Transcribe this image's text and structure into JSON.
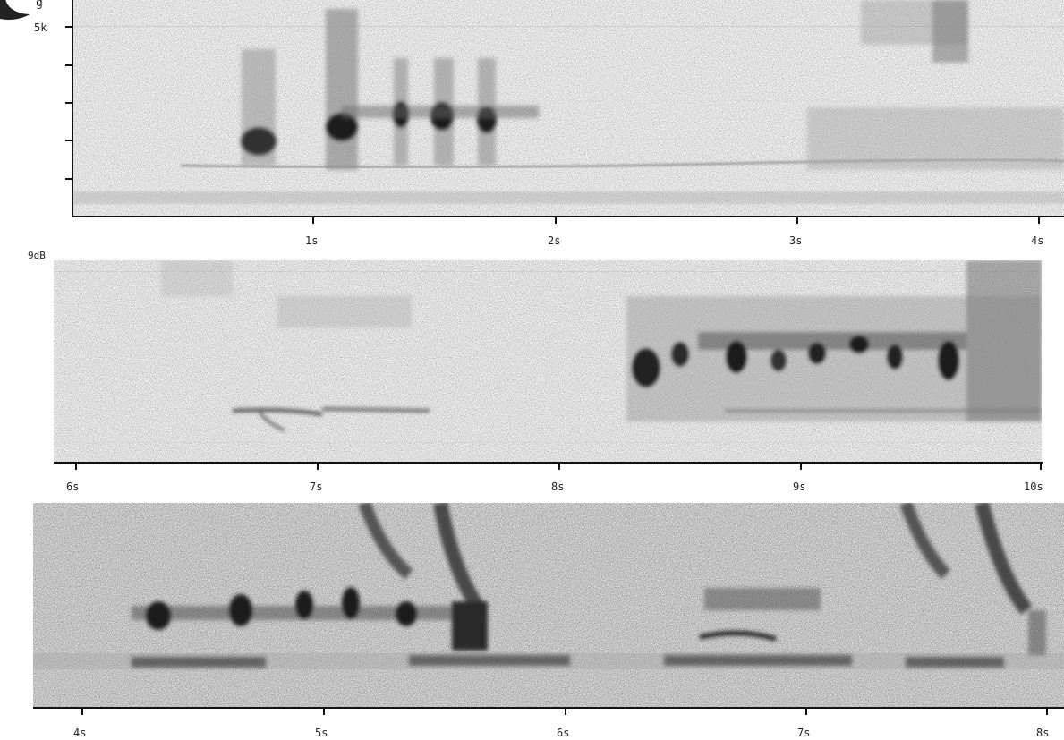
{
  "panels": [
    {
      "id": "top",
      "y_labels": [
        "5k"
      ],
      "x_labels": [
        "1s",
        "2s",
        "3s",
        "4s"
      ],
      "corner_text": "g"
    },
    {
      "id": "middle",
      "corner_text": "9dB",
      "x_labels": [
        "6s",
        "7s",
        "8s",
        "9s",
        "10s"
      ]
    },
    {
      "id": "bottom",
      "x_labels": [
        "4s",
        "5s",
        "6s",
        "7s",
        "8s"
      ]
    }
  ],
  "colors": {
    "ink": "#111111",
    "background": "#f4f4f4",
    "accent": "#222222"
  }
}
